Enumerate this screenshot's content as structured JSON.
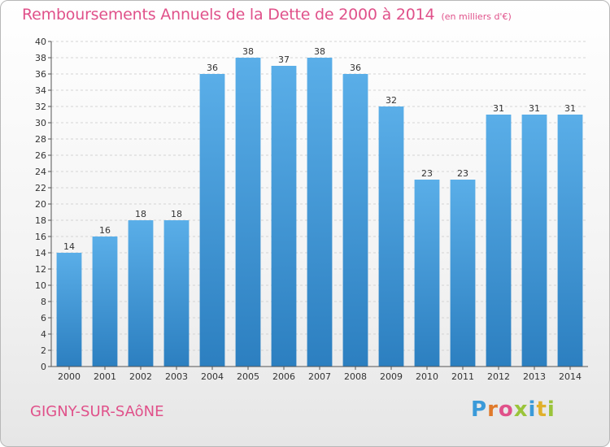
{
  "title": "Remboursements Annuels de la Dette de 2000 à 2014",
  "unit": "(en milliers d'€)",
  "commune": "GIGNY-SUR-SAôNE",
  "logo": {
    "letters": [
      "P",
      "r",
      "o",
      "x",
      "i",
      "t",
      "i"
    ],
    "colors": [
      "#3a9ad9",
      "#e07a2b",
      "#e0518a",
      "#9ac43a",
      "#3a9ad9",
      "#e0b02b",
      "#9ac43a"
    ]
  },
  "colors": {
    "bar_top": "#5aaee8",
    "bar_bottom": "#2c7fc0",
    "title": "#e0518a",
    "grid": "#d4d4d4"
  },
  "chart_data": {
    "type": "bar",
    "categories": [
      "2000",
      "2001",
      "2002",
      "2003",
      "2004",
      "2005",
      "2006",
      "2007",
      "2008",
      "2009",
      "2010",
      "2011",
      "2012",
      "2013",
      "2014"
    ],
    "values": [
      14,
      16,
      18,
      18,
      36,
      38,
      37,
      38,
      36,
      32,
      23,
      23,
      31,
      31,
      31
    ],
    "ylim": [
      0,
      40
    ],
    "ytick_step": 2,
    "grid": true
  }
}
